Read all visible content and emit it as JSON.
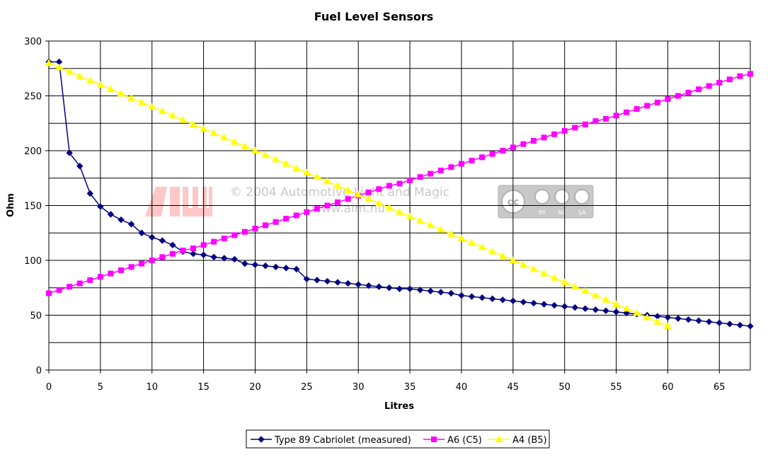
{
  "chart_data": {
    "type": "line",
    "title": "Fuel Level Sensors",
    "xlabel": "Litres",
    "ylabel": "Ohm",
    "xlim": [
      0,
      68
    ],
    "ylim": [
      0,
      300
    ],
    "x_ticks": [
      0,
      5,
      10,
      15,
      20,
      25,
      30,
      35,
      40,
      45,
      50,
      55,
      60,
      65
    ],
    "y_ticks": [
      0,
      50,
      100,
      150,
      200,
      250,
      300
    ],
    "grid": true,
    "legend_position": "bottom",
    "series": [
      {
        "name": "Type 89 Cabriolet (measured)",
        "color": "#000080",
        "marker": "diamond",
        "x": [
          0,
          1,
          2,
          3,
          4,
          5,
          6,
          7,
          8,
          9,
          10,
          11,
          12,
          13,
          14,
          15,
          16,
          17,
          18,
          19,
          20,
          21,
          22,
          23,
          24,
          25,
          26,
          27,
          28,
          29,
          30,
          31,
          32,
          33,
          34,
          35,
          36,
          37,
          38,
          39,
          40,
          41,
          42,
          43,
          44,
          45,
          46,
          47,
          48,
          49,
          50,
          51,
          52,
          53,
          54,
          55,
          56,
          57,
          58,
          59,
          60,
          61,
          62,
          63,
          64,
          65,
          66,
          67,
          68
        ],
        "y": [
          281,
          281,
          198,
          186,
          161,
          149,
          142,
          137,
          133,
          125,
          121,
          118,
          114,
          108,
          106,
          105,
          103,
          102,
          101,
          97,
          96,
          95,
          94,
          93,
          92,
          83,
          82,
          81,
          80,
          79,
          78,
          77,
          76,
          75,
          74,
          74,
          73,
          72,
          71,
          70,
          68,
          67,
          66,
          65,
          64,
          63,
          62,
          61,
          60,
          59,
          58,
          57,
          56,
          55,
          54,
          53,
          52,
          51,
          50,
          49,
          48,
          47,
          46,
          45,
          44,
          43,
          42,
          41,
          40
        ]
      },
      {
        "name": "A6 (C5)",
        "color": "#ff00ff",
        "marker": "square",
        "x": [
          0,
          1,
          2,
          3,
          4,
          5,
          6,
          7,
          8,
          9,
          10,
          11,
          12,
          13,
          14,
          15,
          16,
          17,
          18,
          19,
          20,
          21,
          22,
          23,
          24,
          25,
          26,
          27,
          28,
          29,
          30,
          31,
          32,
          33,
          34,
          35,
          36,
          37,
          38,
          39,
          40,
          41,
          42,
          43,
          44,
          45,
          46,
          47,
          48,
          49,
          50,
          51,
          52,
          53,
          54,
          55,
          56,
          57,
          58,
          59,
          60,
          61,
          62,
          63,
          64,
          65,
          66,
          67,
          68
        ],
        "y": [
          70,
          73,
          76,
          79,
          82,
          85,
          88,
          91,
          94,
          97,
          100,
          103,
          106,
          109,
          111,
          114,
          117,
          120,
          123,
          126,
          129,
          132,
          135,
          138,
          141,
          144,
          147,
          150,
          153,
          156,
          159,
          162,
          165,
          168,
          170,
          173,
          176,
          179,
          182,
          185,
          188,
          191,
          194,
          197,
          200,
          203,
          206,
          209,
          212,
          215,
          218,
          221,
          224,
          227,
          229,
          232,
          235,
          238,
          241,
          244,
          247,
          250,
          253,
          256,
          259,
          262,
          265,
          268,
          270
        ]
      },
      {
        "name": "A4 (B5)",
        "color": "#ffff00",
        "marker": "triangle",
        "x": [
          0,
          1,
          2,
          3,
          4,
          5,
          6,
          7,
          8,
          9,
          10,
          11,
          12,
          13,
          14,
          15,
          16,
          17,
          18,
          19,
          20,
          21,
          22,
          23,
          24,
          25,
          26,
          27,
          28,
          29,
          30,
          31,
          32,
          33,
          34,
          35,
          36,
          37,
          38,
          39,
          40,
          41,
          42,
          43,
          44,
          45,
          46,
          47,
          48,
          49,
          50,
          51,
          52,
          53,
          54,
          55,
          56,
          57,
          58,
          59,
          60
        ],
        "y": [
          280,
          276,
          272,
          268,
          264,
          260,
          256,
          252,
          248,
          244,
          240,
          236,
          232,
          228,
          224,
          220,
          216,
          212,
          208,
          204,
          200,
          196,
          192,
          188,
          184,
          180,
          176,
          172,
          168,
          164,
          160,
          156,
          152,
          148,
          144,
          140,
          136,
          132,
          128,
          124,
          120,
          116,
          112,
          108,
          104,
          100,
          96,
          92,
          88,
          84,
          80,
          76,
          72,
          68,
          64,
          60,
          56,
          52,
          48,
          44,
          40
        ]
      }
    ]
  },
  "watermark": {
    "logo_text": "AIM",
    "copyright": "© 2004 Automotive Light and Magic",
    "url": "www.aim.nu",
    "license_tags": [
      "BY",
      "NC",
      "SA"
    ]
  }
}
